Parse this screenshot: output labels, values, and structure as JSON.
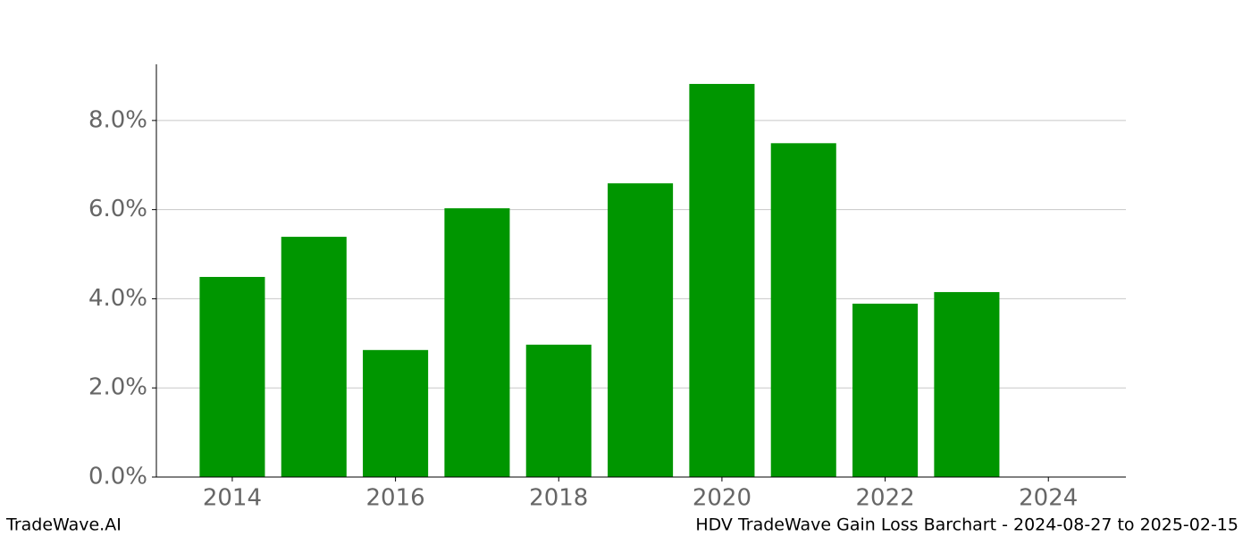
{
  "chart_data": {
    "type": "bar",
    "title": "HDV TradeWave Gain Loss Barchart - 2024-08-27 to 2025-02-15",
    "watermark": "TradeWave.AI",
    "x": [
      2014,
      2015,
      2016,
      2017,
      2018,
      2019,
      2020,
      2021,
      2022,
      2023
    ],
    "values": [
      4.49,
      5.39,
      2.85,
      6.03,
      2.97,
      6.59,
      8.82,
      7.49,
      3.89,
      4.15
    ],
    "color": "#009600",
    "xlim": [
      2013.07,
      2024.95
    ],
    "xticks": [
      2014,
      2016,
      2018,
      2020,
      2022,
      2024
    ],
    "ylim": [
      0,
      9.26
    ],
    "yticks": [
      {
        "value": 0,
        "label": "0.0%"
      },
      {
        "value": 2,
        "label": "2.0%"
      },
      {
        "value": 4,
        "label": "4.0%"
      },
      {
        "value": 6,
        "label": "6.0%"
      },
      {
        "value": 8,
        "label": "8.0%"
      }
    ],
    "grid": true
  }
}
